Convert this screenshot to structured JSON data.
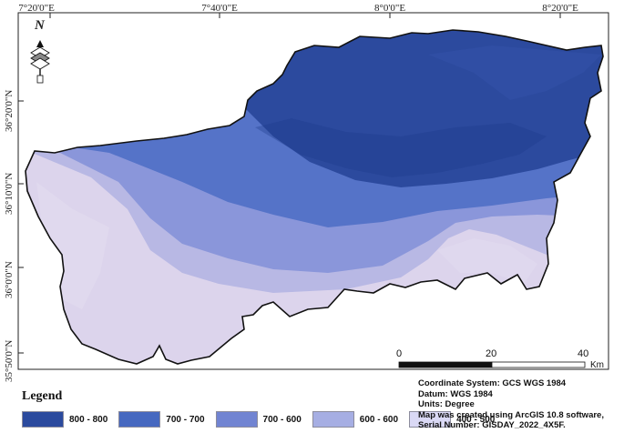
{
  "grid": {
    "longitude_labels": [
      "7°20'0\"E",
      "7°40'0\"E",
      "8°0'0\"E",
      "8°20'0\"E"
    ],
    "latitude_labels": [
      "36°20'0\"N",
      "36°10'0\"N",
      "36°0'0\"N",
      "35°50'0\"N"
    ]
  },
  "north_arrow": {
    "letter": "N",
    "icon": "north-arrow-icon"
  },
  "scale_bar": {
    "ticks": [
      "0",
      "20",
      "40"
    ],
    "unit": "Km"
  },
  "legend": {
    "title": "Legend",
    "items": [
      {
        "label": "800 - 800",
        "color": "#2b4a9e"
      },
      {
        "label": "700 - 700",
        "color": "#4668c0"
      },
      {
        "label": "700 - 600",
        "color": "#7184d2"
      },
      {
        "label": "600 - 600",
        "color": "#a6aee3"
      },
      {
        "label": "400 - 500",
        "color": "#dad9f5"
      }
    ]
  },
  "map_info": {
    "coordinate_system": "Coordinate System: GCS WGS 1984",
    "datum": "Datum: WGS 1984",
    "units": "Units: Degree",
    "software": "Map was created using ArcGIS 10.8 software,",
    "serial": "Serial Number: GISDAY_2022_4X5F."
  }
}
